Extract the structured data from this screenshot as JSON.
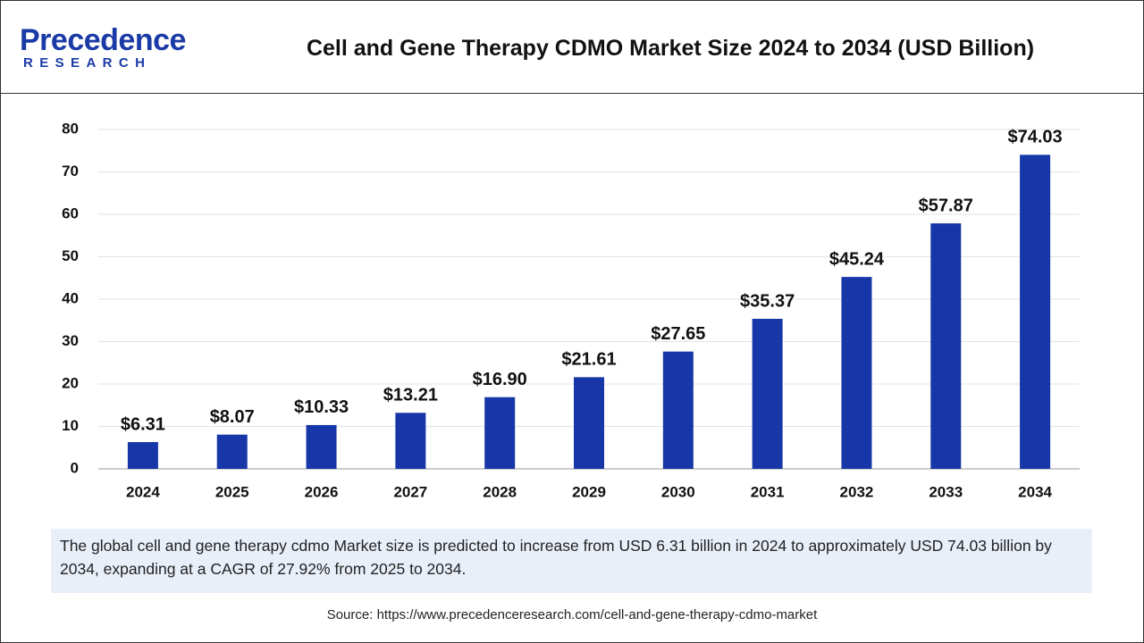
{
  "header": {
    "logo_name": "Precedence",
    "logo_sub": "RESEARCH"
  },
  "chart_data": {
    "type": "bar",
    "title": "Cell and Gene Therapy CDMO Market Size 2024 to 2034 (USD Billion)",
    "categories": [
      "2024",
      "2025",
      "2026",
      "2027",
      "2028",
      "2029",
      "2030",
      "2031",
      "2032",
      "2033",
      "2034"
    ],
    "values": [
      6.31,
      8.07,
      10.33,
      13.21,
      16.9,
      21.61,
      27.65,
      35.37,
      45.24,
      57.87,
      74.03
    ],
    "value_labels": [
      "$6.31",
      "$8.07",
      "$10.33",
      "$13.21",
      "$16.90",
      "$21.61",
      "$27.65",
      "$35.37",
      "$45.24",
      "$57.87",
      "$74.03"
    ],
    "color": "#1737a8",
    "ylim": [
      0,
      80
    ],
    "yticks": [
      0,
      10,
      20,
      30,
      40,
      50,
      60,
      70,
      80
    ],
    "grid": true
  },
  "description": "The global cell and gene therapy cdmo Market size is predicted to increase from USD 6.31 billion in 2024 to approximately USD 74.03 billion by 2034, expanding at a CAGR of 27.92% from 2025 to 2034.",
  "source": "Source: https://www.precedenceresearch.com/cell-and-gene-therapy-cdmo-market"
}
